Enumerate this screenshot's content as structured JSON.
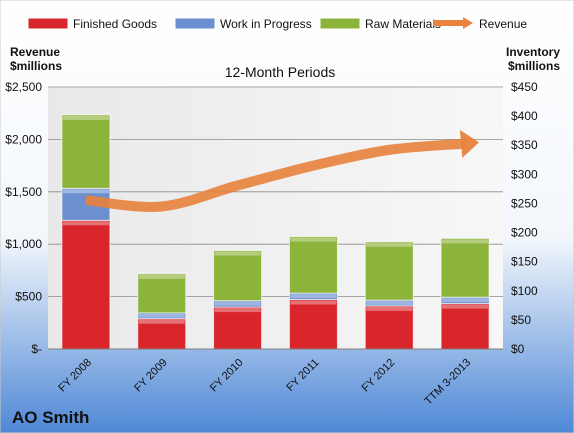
{
  "chart_data": {
    "type": "bar",
    "stacked": true,
    "title": "12-Month Periods",
    "company": "AO Smith",
    "categories": [
      "FY 2008",
      "FY 2009",
      "FY 2010",
      "FY 2011",
      "FY 2012",
      "TTM 3-2013"
    ],
    "left_axis": {
      "label_line1": "Revenue",
      "label_line2": "$millions",
      "range": [
        0,
        2500
      ],
      "ticks": [
        0,
        500,
        1000,
        1500,
        2000,
        2500
      ],
      "tick_labels": [
        "$-",
        "$500",
        "$1,000",
        "$1,500",
        "$2,000",
        "$2,500"
      ]
    },
    "right_axis": {
      "label_line1": "Inventory",
      "label_line2": "$millions",
      "range": [
        0,
        450
      ],
      "ticks": [
        0,
        50,
        100,
        150,
        200,
        250,
        300,
        350,
        400,
        450
      ],
      "tick_labels": [
        "$0",
        "$50",
        "$100",
        "$150",
        "$200",
        "$250",
        "$300",
        "$350",
        "$400",
        "$450"
      ]
    },
    "series": [
      {
        "name": "Finished Goods",
        "axis": "right",
        "color": "#d9262c",
        "values": [
          221,
          52,
          72,
          85,
          74,
          78
        ]
      },
      {
        "name": "Work in Progress",
        "axis": "right",
        "color": "#6b8fcf",
        "values": [
          55,
          10,
          11,
          11,
          10,
          11
        ]
      },
      {
        "name": "Raw Materials",
        "axis": "right",
        "color": "#8cb33a",
        "values": [
          126,
          67,
          86,
          97,
          100,
          101
        ]
      },
      {
        "name": "Revenue",
        "axis": "left",
        "type": "trend-arrow",
        "color": "#e8823c",
        "values": [
          1420,
          1360,
          1560,
          1750,
          1900,
          1960
        ]
      }
    ],
    "legend_position": "top",
    "gridlines": true
  }
}
